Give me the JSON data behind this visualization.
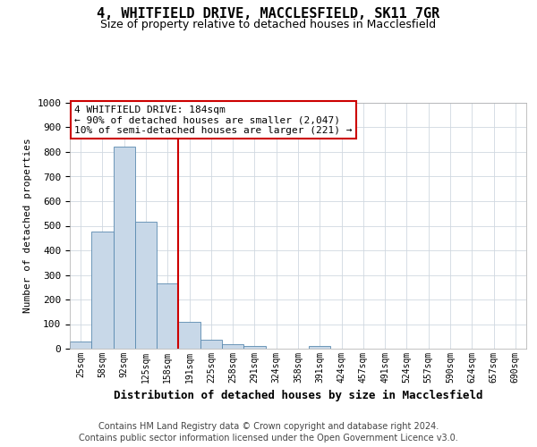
{
  "title_line1": "4, WHITFIELD DRIVE, MACCLESFIELD, SK11 7GR",
  "title_line2": "Size of property relative to detached houses in Macclesfield",
  "xlabel": "Distribution of detached houses by size in Macclesfield",
  "ylabel": "Number of detached properties",
  "categories": [
    "25sqm",
    "58sqm",
    "92sqm",
    "125sqm",
    "158sqm",
    "191sqm",
    "225sqm",
    "258sqm",
    "291sqm",
    "324sqm",
    "358sqm",
    "391sqm",
    "424sqm",
    "457sqm",
    "491sqm",
    "524sqm",
    "557sqm",
    "590sqm",
    "624sqm",
    "657sqm",
    "690sqm"
  ],
  "values": [
    30,
    478,
    822,
    515,
    265,
    110,
    38,
    20,
    10,
    0,
    0,
    10,
    0,
    0,
    0,
    0,
    0,
    0,
    0,
    0,
    0
  ],
  "bar_color": "#c8d8e8",
  "bar_edge_color": "#5a8ab0",
  "vline_x_index": 4.5,
  "vline_color": "#cc0000",
  "ylim": [
    0,
    1000
  ],
  "yticks": [
    0,
    100,
    200,
    300,
    400,
    500,
    600,
    700,
    800,
    900,
    1000
  ],
  "annotation_text": "4 WHITFIELD DRIVE: 184sqm\n← 90% of detached houses are smaller (2,047)\n10% of semi-detached houses are larger (221) →",
  "annotation_box_color": "#ffffff",
  "annotation_box_edge": "#cc0000",
  "footer_line1": "Contains HM Land Registry data © Crown copyright and database right 2024.",
  "footer_line2": "Contains public sector information licensed under the Open Government Licence v3.0.",
  "background_color": "#ffffff",
  "grid_color": "#d0d8e0",
  "font_family": "monospace"
}
